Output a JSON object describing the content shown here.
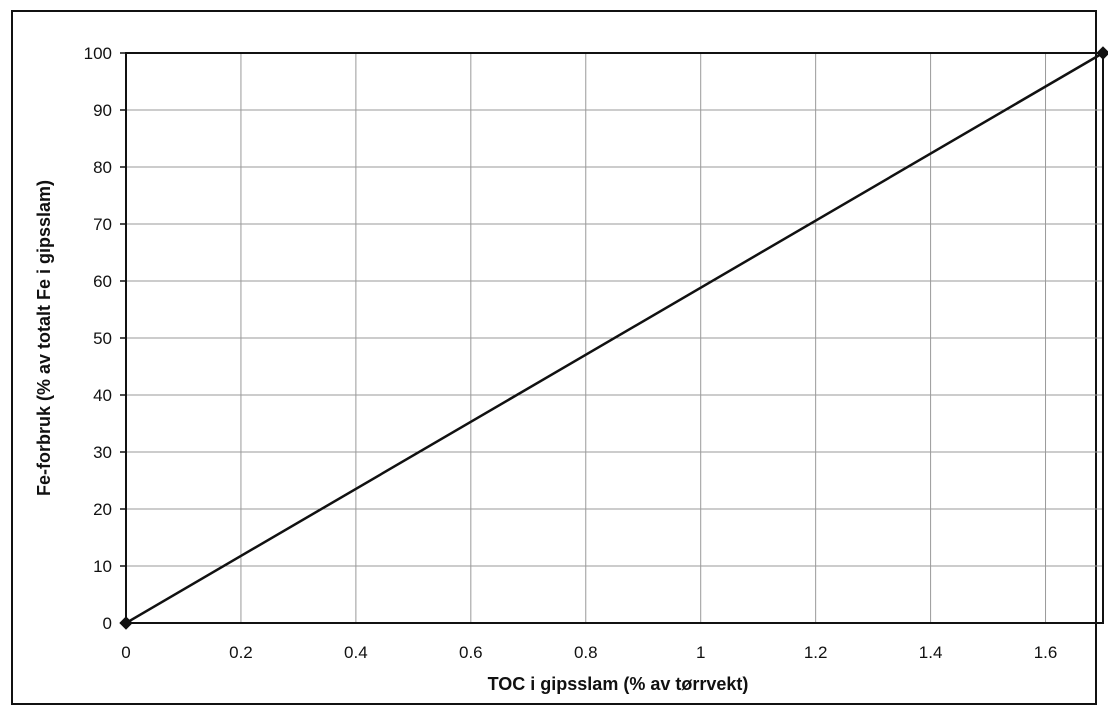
{
  "chart_data": {
    "type": "line",
    "title": "",
    "xlabel": "TOC i gipsslam (% av tørrvekt)",
    "ylabel": "Fe-forbruk (% av totalt Fe i gipsslam)",
    "xlim": [
      0,
      1.7
    ],
    "ylim": [
      0,
      100
    ],
    "x_ticks": [
      0,
      0.2,
      0.4,
      0.6,
      0.8,
      1,
      1.2,
      1.4,
      1.6
    ],
    "x_tick_labels": [
      "0",
      "0.2",
      "0.4",
      "0.6",
      "0.8",
      "1",
      "1.2",
      "1.4",
      "1.6"
    ],
    "y_ticks": [
      0,
      10,
      20,
      30,
      40,
      50,
      60,
      70,
      80,
      90,
      100
    ],
    "y_tick_labels": [
      "0",
      "10",
      "20",
      "30",
      "40",
      "50",
      "60",
      "70",
      "80",
      "90",
      "100"
    ],
    "grid": true,
    "legend": "none",
    "series": [
      {
        "x": [
          0,
          1.7
        ],
        "y": [
          0,
          100
        ],
        "marker": "diamond",
        "color": "#111111"
      }
    ]
  }
}
